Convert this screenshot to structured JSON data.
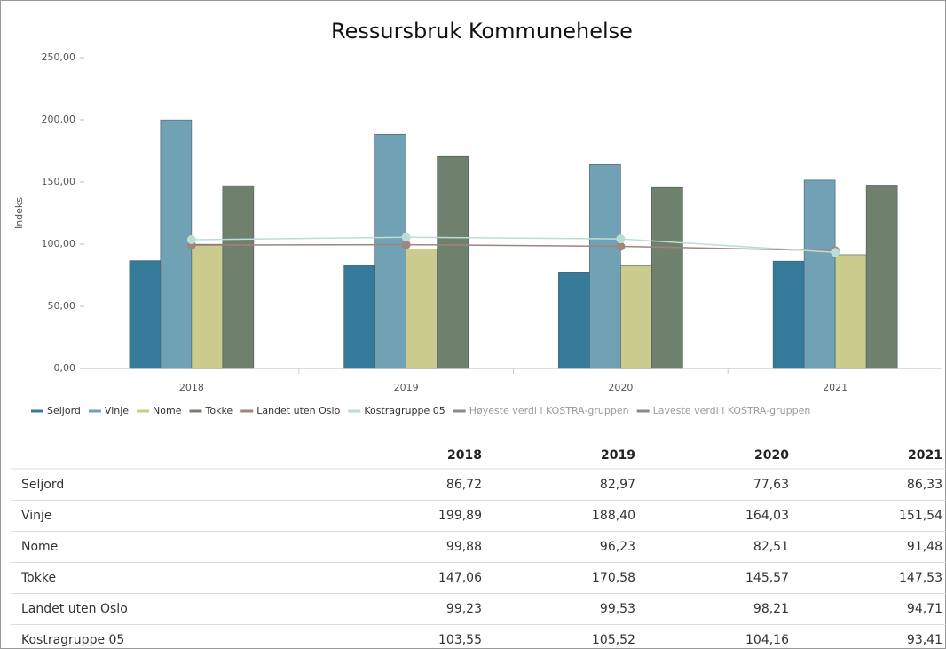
{
  "chart_data": {
    "type": "bar",
    "title": "Ressursbruk Kommunehelse",
    "y_label": "Indeks",
    "categories": [
      "2018",
      "2019",
      "2020",
      "2021"
    ],
    "ylim": [
      0,
      250
    ],
    "yticks": [
      {
        "value": 0,
        "label": "0,00"
      },
      {
        "value": 50,
        "label": "50,00"
      },
      {
        "value": 100,
        "label": "100,00"
      },
      {
        "value": 150,
        "label": "150,00"
      },
      {
        "value": 200,
        "label": "200,00"
      },
      {
        "value": 250,
        "label": "250,00"
      }
    ],
    "grid": false,
    "legend_position": "bottom",
    "series": [
      {
        "name": "Seljord",
        "type": "bar",
        "color": "#367a9a",
        "values": [
          86.72,
          82.97,
          77.63,
          86.33
        ]
      },
      {
        "name": "Vinje",
        "type": "bar",
        "color": "#70a1b4",
        "values": [
          199.89,
          188.4,
          164.03,
          151.54
        ]
      },
      {
        "name": "Nome",
        "type": "bar",
        "color": "#cbcb8e",
        "values": [
          99.88,
          96.23,
          82.51,
          91.48
        ]
      },
      {
        "name": "Tokke",
        "type": "bar",
        "color": "#6f806c",
        "values": [
          147.06,
          170.58,
          145.57,
          147.53
        ]
      },
      {
        "name": "Landet uten Oslo",
        "type": "line",
        "color": "#9e8580",
        "values": [
          99.23,
          99.53,
          98.21,
          94.71
        ]
      },
      {
        "name": "Kostragruppe 05",
        "type": "line",
        "color": "#bfdbd5",
        "values": [
          103.55,
          105.52,
          104.16,
          93.41
        ]
      },
      {
        "name": "Høyeste verdi i KOSTRA-gruppen",
        "type": "line",
        "color": "#8a8a8a",
        "visible": false,
        "values": [
          null,
          null,
          null,
          null
        ]
      },
      {
        "name": "Laveste verdi i KOSTRA-gruppen",
        "type": "line",
        "color": "#8a8a8a",
        "visible": false,
        "values": [
          null,
          null,
          null,
          null
        ]
      }
    ]
  },
  "table": {
    "columns": [
      "2018",
      "2019",
      "2020",
      "2021"
    ],
    "rows": [
      {
        "label": "Seljord",
        "cells": [
          "86,72",
          "82,97",
          "77,63",
          "86,33"
        ]
      },
      {
        "label": "Vinje",
        "cells": [
          "199,89",
          "188,40",
          "164,03",
          "151,54"
        ]
      },
      {
        "label": "Nome",
        "cells": [
          "99,88",
          "96,23",
          "82,51",
          "91,48"
        ]
      },
      {
        "label": "Tokke",
        "cells": [
          "147,06",
          "170,58",
          "145,57",
          "147,53"
        ]
      },
      {
        "label": "Landet uten Oslo",
        "cells": [
          "99,23",
          "99,53",
          "98,21",
          "94,71"
        ]
      },
      {
        "label": "Kostragruppe 05",
        "cells": [
          "103,55",
          "105,52",
          "104,16",
          "93,41"
        ]
      }
    ]
  }
}
